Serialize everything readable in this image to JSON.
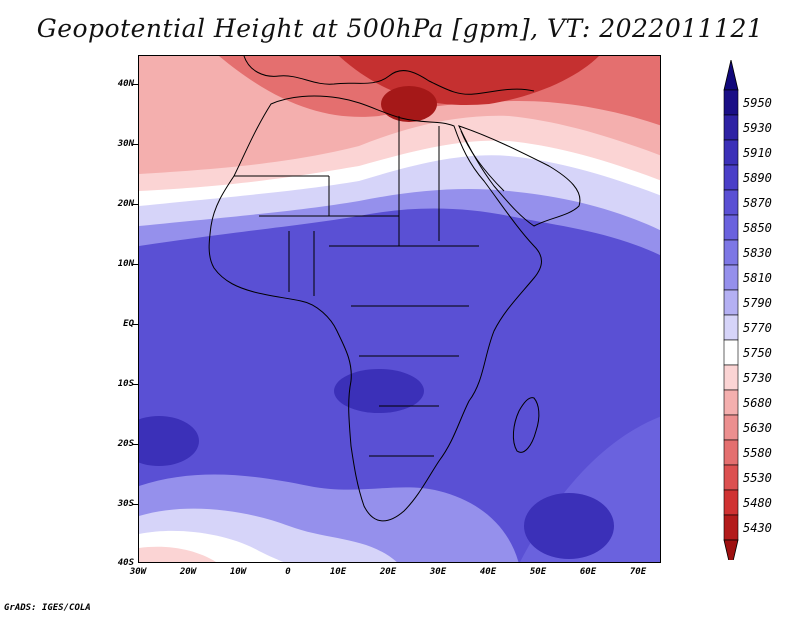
{
  "title": "Geopotential Height at 500hPa [gpm], VT: 2022011121",
  "footer": "GrADS: IGES/COLA",
  "axes": {
    "lat_labels": [
      "40N",
      "30N",
      "20N",
      "10N",
      "EQ",
      "10S",
      "20S",
      "30S",
      "40S"
    ],
    "lon_labels": [
      "30W",
      "20W",
      "10W",
      "0",
      "10E",
      "20E",
      "30E",
      "40E",
      "50E",
      "60E",
      "70E"
    ]
  },
  "colorbar": {
    "labels": [
      "5950",
      "5930",
      "5910",
      "5890",
      "5870",
      "5850",
      "5830",
      "5810",
      "5790",
      "5770",
      "5750",
      "5730",
      "5680",
      "5630",
      "5580",
      "5530",
      "5480",
      "5430"
    ],
    "colors": [
      "#1a0f86",
      "#2e22a4",
      "#3b30b8",
      "#4a3fc8",
      "#5a50d4",
      "#6a62de",
      "#7d77e5",
      "#9590ec",
      "#b4b0f3",
      "#d6d4f9",
      "#ffffff",
      "#fbd4d4",
      "#f4afae",
      "#ec8f8f",
      "#e46f6f",
      "#dc5050",
      "#d03232",
      "#b31b1b"
    ],
    "top_arrow_color": "#11087a",
    "bottom_arrow_color": "#9e1010"
  },
  "map_colors": {
    "deep_blue": "#3b30b8",
    "blue": "#5a50d4",
    "mid_blue": "#6a62de",
    "light_blue": "#9590ec",
    "pale_blue": "#d6d4f9",
    "white": "#ffffff",
    "pale_red": "#fbd4d4",
    "light_red": "#f4afae",
    "red": "#e46f6f",
    "deep_red": "#c53030",
    "darkest_red": "#a51818"
  }
}
